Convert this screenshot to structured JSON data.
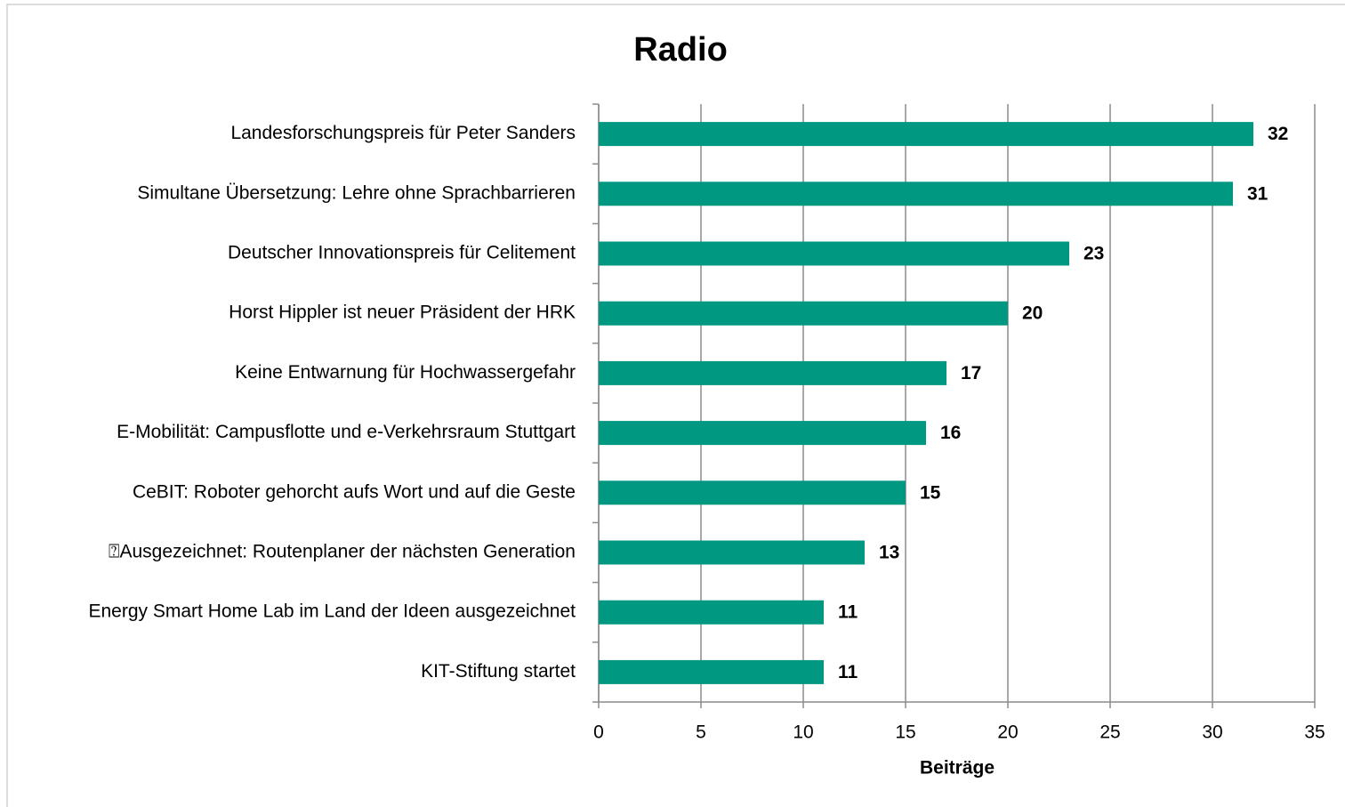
{
  "chart_data": {
    "type": "bar",
    "orientation": "horizontal",
    "title": "Radio",
    "categories": [
      "Landesforschungspreis für Peter Sanders",
      "Simultane Übersetzung: Lehre ohne Sprachbarrieren",
      "Deutscher Innovationspreis für Celitement",
      "Horst Hippler ist neuer Präsident der HRK",
      "Keine Entwarnung für Hochwassergefahr",
      "E-Mobilität: Campusflotte und e-Verkehrsraum Stuttgart",
      "CeBIT: Roboter gehorcht aufs Wort und auf die Geste",
      "⍰Ausgezeichnet: Routenplaner der nächsten Generation",
      "Energy Smart Home Lab im Land der Ideen ausgezeichnet",
      "KIT-Stiftung startet"
    ],
    "values": [
      32,
      31,
      23,
      20,
      17,
      16,
      15,
      13,
      11,
      11
    ],
    "color": "#009881",
    "xlabel": "Beiträge",
    "xlim": [
      0,
      35
    ],
    "xticks": [
      0,
      5,
      10,
      15,
      20,
      25,
      30,
      35
    ],
    "grid": true
  }
}
